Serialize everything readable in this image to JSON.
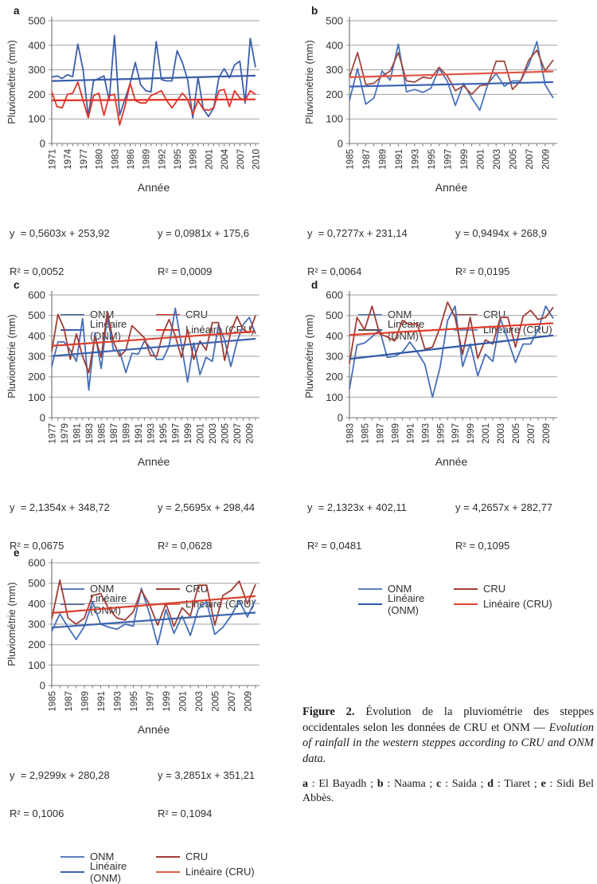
{
  "axis": {
    "y_label": "Pluviométrie (mm)",
    "x_label": "Année"
  },
  "chart_data": [
    {
      "id": "a",
      "label": "a",
      "type": "line",
      "ylabel": "Pluviométrie (mm)",
      "xlabel": "Année",
      "ylim": [
        0,
        500
      ],
      "ystep": 100,
      "grid": true,
      "legend_position": "bottom",
      "x_start": 1971,
      "x_end": 2010,
      "x_tick_labels": [
        1971,
        1974,
        1977,
        1980,
        1983,
        1986,
        1989,
        1992,
        1995,
        1998,
        2001,
        2004,
        2007,
        2010
      ],
      "equations": {
        "left": "y  = 0,5603x + 253,92",
        "left_r2": "R² = 0,0052",
        "right": "y = 0,0981x + 175,6",
        "right_r2": "R² = 0,0009"
      },
      "series": [
        {
          "name": "ONM",
          "color": "#3b5ea9",
          "values": [
            270,
            275,
            265,
            280,
            272,
            405,
            300,
            110,
            255,
            265,
            275,
            175,
            440,
            115,
            180,
            245,
            330,
            240,
            215,
            210,
            415,
            260,
            255,
            255,
            378,
            330,
            260,
            105,
            270,
            140,
            110,
            145,
            270,
            305,
            268,
            320,
            335,
            165,
            428,
            310
          ]
        },
        {
          "name": "CRU",
          "color": "#e23327",
          "values": [
            210,
            150,
            145,
            200,
            205,
            250,
            175,
            105,
            195,
            205,
            115,
            195,
            200,
            75,
            150,
            245,
            175,
            165,
            165,
            195,
            205,
            215,
            175,
            145,
            175,
            205,
            180,
            120,
            175,
            140,
            135,
            145,
            215,
            220,
            150,
            215,
            185,
            175,
            215,
            200
          ]
        }
      ],
      "trends": [
        {
          "name": "Linéaire (ONM)",
          "color": "#3b5ea9",
          "slope": 0.5603,
          "intercept": 253.92
        },
        {
          "name": "Linéaire (CRU)",
          "color": "#e23327",
          "slope": 0.0981,
          "intercept": 175.6
        }
      ],
      "legend_colors": {
        "onm": "#3b5ea9",
        "cru": "#e23327",
        "lin_onm": "#3b5ea9",
        "lin_cru": "#e23327"
      }
    },
    {
      "id": "b",
      "label": "b",
      "type": "line",
      "ylabel": "Pluviométrie (mm)",
      "xlabel": "Année",
      "ylim": [
        0,
        500
      ],
      "ystep": 100,
      "grid": true,
      "legend_position": "bottom",
      "x_start": 1985,
      "x_end": 2010,
      "x_tick_labels": [
        1985,
        1987,
        1989,
        1991,
        1993,
        1995,
        1997,
        1999,
        2001,
        2003,
        2005,
        2007,
        2009
      ],
      "equations": {
        "left": "y  = 0,7277x + 231,14",
        "left_r2": "R² = 0,0064",
        "right": "y = 0,9494x + 268,9",
        "right_r2": "R² = 0,0195"
      },
      "series": [
        {
          "name": "ONM",
          "color": "#4a73bd",
          "values": [
            175,
            305,
            160,
            185,
            295,
            258,
            405,
            210,
            220,
            208,
            225,
            305,
            255,
            155,
            245,
            185,
            135,
            245,
            285,
            233,
            255,
            255,
            320,
            415,
            240,
            185
          ]
        },
        {
          "name": "CRU",
          "color": "#9e4a41",
          "values": [
            270,
            370,
            240,
            245,
            275,
            295,
            370,
            255,
            250,
            270,
            265,
            310,
            275,
            215,
            235,
            200,
            235,
            240,
            335,
            335,
            220,
            255,
            340,
            380,
            295,
            340
          ]
        }
      ],
      "trends": [
        {
          "name": "Linéaire (ONM)",
          "color": "#3c63b0",
          "slope": 0.7277,
          "intercept": 231.14
        },
        {
          "name": "Linéaire (CRU)",
          "color": "#e05545",
          "slope": 0.9494,
          "intercept": 268.9
        }
      ],
      "legend_colors": {
        "onm": "#4a73bd",
        "cru": "#9e4a41",
        "lin_onm": "#4f4f4f",
        "lin_cru": "#6d8dc8"
      }
    },
    {
      "id": "c",
      "label": "c",
      "type": "line",
      "ylabel": "Pluviométrie (mm)",
      "xlabel": "Année",
      "ylim": [
        0,
        600
      ],
      "ystep": 100,
      "grid": true,
      "legend_position": "bottom",
      "x_start": 1977,
      "x_end": 2010,
      "x_tick_labels": [
        1977,
        1979,
        1981,
        1983,
        1985,
        1987,
        1989,
        1991,
        1993,
        1995,
        1997,
        1999,
        2001,
        2003,
        2005,
        2007,
        2009
      ],
      "equations": {
        "left": "y  = 2,1354x + 348,72",
        "left_r2": "R² = 0,0675",
        "right": "y = 2,5695x + 298,44",
        "right_r2": "R² = 0,0628"
      },
      "series": [
        {
          "name": "ONM",
          "color": "#466fb8",
          "values": [
            250,
            370,
            370,
            330,
            275,
            485,
            135,
            415,
            240,
            495,
            330,
            325,
            220,
            315,
            310,
            375,
            340,
            285,
            285,
            350,
            535,
            355,
            175,
            365,
            210,
            295,
            275,
            455,
            380,
            250,
            370,
            455,
            490,
            410
          ]
        },
        {
          "name": "CRU",
          "color": "#a03d35",
          "values": [
            325,
            505,
            435,
            285,
            410,
            300,
            220,
            395,
            295,
            515,
            370,
            300,
            330,
            450,
            420,
            390,
            305,
            300,
            410,
            480,
            400,
            295,
            430,
            285,
            375,
            330,
            465,
            465,
            280,
            420,
            495,
            430,
            415,
            500
          ]
        }
      ],
      "trends": [
        {
          "name": "Linéaire (ONM)",
          "color": "#3c63ae",
          "slope": 2.5695,
          "intercept": 298.44
        },
        {
          "name": "Linéaire (CRU)",
          "color": "#d9402e",
          "slope": 2.1354,
          "intercept": 348.72
        }
      ],
      "legend_colors": {
        "onm": "#5c7fc0",
        "cru": "#a03d35",
        "lin_onm": "#3c63ae",
        "lin_cru": "#e0604b"
      }
    },
    {
      "id": "d",
      "label": "d",
      "type": "line",
      "ylabel": "Pluviométrie (mm)",
      "xlabel": "Année",
      "ylim": [
        0,
        600
      ],
      "ystep": 100,
      "grid": true,
      "legend_position": "bottom",
      "x_start": 1983,
      "x_end": 2010,
      "x_tick_labels": [
        1983,
        1985,
        1987,
        1989,
        1991,
        1993,
        1995,
        1997,
        1999,
        2001,
        2003,
        2005,
        2007,
        2009
      ],
      "equations": {
        "left": "y  = 2,1323x + 402,11",
        "left_r2": "R² = 0,0481",
        "right": "y = 4,2657x + 282,77",
        "right_r2": "R² = 0,1095"
      },
      "series": [
        {
          "name": "ONM",
          "color": "#466fb8",
          "values": [
            140,
            355,
            365,
            395,
            430,
            295,
            300,
            320,
            370,
            320,
            260,
            100,
            245,
            475,
            545,
            250,
            360,
            205,
            310,
            275,
            485,
            380,
            270,
            360,
            360,
            430,
            545,
            485
          ]
        },
        {
          "name": "CRU",
          "color": "#a03d35",
          "values": [
            265,
            490,
            430,
            545,
            410,
            395,
            375,
            475,
            455,
            460,
            335,
            345,
            440,
            565,
            490,
            310,
            490,
            290,
            380,
            360,
            490,
            490,
            345,
            495,
            525,
            480,
            490,
            540
          ]
        }
      ],
      "trends": [
        {
          "name": "Linéaire (ONM)",
          "color": "#2f58a8",
          "slope": 4.2657,
          "intercept": 282.77
        },
        {
          "name": "Linéaire (CRU)",
          "color": "#e23b28",
          "slope": 2.1323,
          "intercept": 402.11
        }
      ],
      "legend_colors": {
        "onm": "#5c7fc0",
        "cru": "#a03d35",
        "lin_onm": "#2f58a8",
        "lin_cru": "#e4432e"
      }
    },
    {
      "id": "e",
      "label": "e",
      "type": "line",
      "ylabel": "Pluviométrie (mm)",
      "xlabel": "Année",
      "ylim": [
        0,
        600
      ],
      "ystep": 100,
      "grid": true,
      "legend_position": "bottom",
      "x_start": 1985,
      "x_end": 2010,
      "x_tick_labels": [
        1985,
        1987,
        1989,
        1991,
        1993,
        1995,
        1997,
        1999,
        2001,
        2003,
        2005,
        2007,
        2009
      ],
      "equations": {
        "left": "y  = 2,9299x + 280,28",
        "left_r2": "R² = 0,1006",
        "right": "y = 3,2851x + 351,21",
        "right_r2": "R² = 0,1094"
      },
      "series": [
        {
          "name": "ONM",
          "color": "#466fb8",
          "values": [
            265,
            350,
            285,
            225,
            290,
            410,
            300,
            285,
            275,
            300,
            290,
            475,
            350,
            200,
            370,
            255,
            340,
            245,
            375,
            410,
            250,
            285,
            340,
            415,
            335,
            420
          ]
        },
        {
          "name": "CRU",
          "color": "#a03d35",
          "values": [
            325,
            515,
            330,
            300,
            330,
            440,
            450,
            375,
            330,
            320,
            360,
            465,
            395,
            295,
            400,
            290,
            380,
            340,
            490,
            490,
            295,
            440,
            465,
            510,
            400,
            495
          ]
        }
      ],
      "trends": [
        {
          "name": "Linéaire (ONM)",
          "color": "#3c63ae",
          "slope": 2.9299,
          "intercept": 280.28
        },
        {
          "name": "Linéaire (CRU)",
          "color": "#d9402e",
          "slope": 3.2851,
          "intercept": 351.21
        }
      ],
      "legend_colors": {
        "onm": "#5c7fc0",
        "cru": "#a03d35",
        "lin_onm": "#3c63ae",
        "lin_cru": "#e0604b"
      }
    }
  ],
  "caption": {
    "figure_label": "Figure 2.",
    "text_fr": " Évolution de la pluviométrie des steppes occidentales selon les données de CRU et ONM — ",
    "text_en_italic": "Evolution of rainfall in the western steppes according to CRU and ONM data.",
    "sites": [
      {
        "key": "a",
        "text": " : El Bayadh ; "
      },
      {
        "key": "b",
        "text": " : Naama ; "
      },
      {
        "key": "c",
        "text": " : Saida ; "
      },
      {
        "key": "d",
        "text": " : Tiaret ; "
      },
      {
        "key": "e",
        "text": " : Sidi Bel Abbès."
      }
    ]
  }
}
